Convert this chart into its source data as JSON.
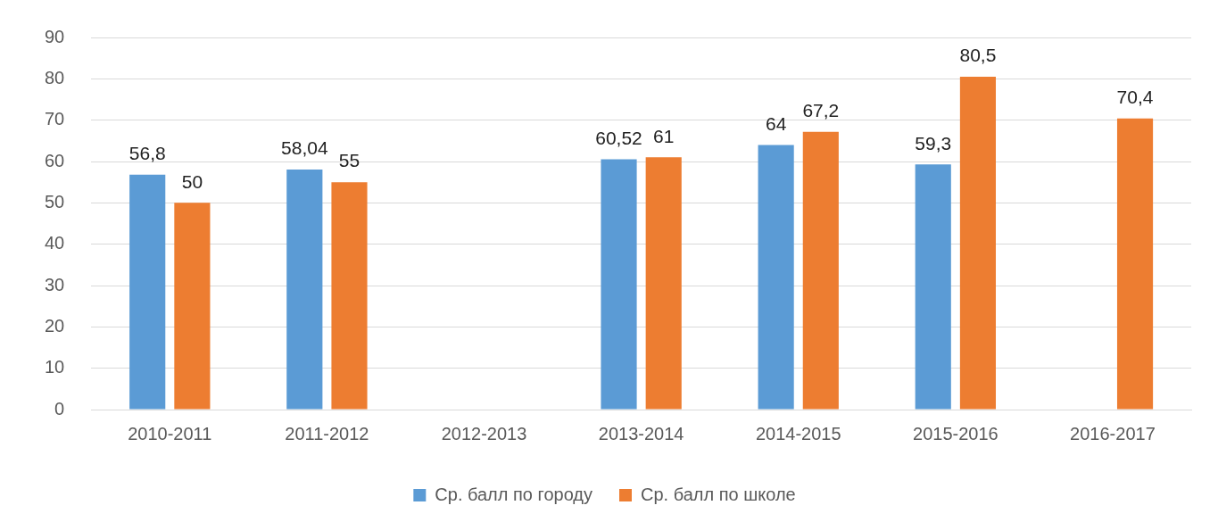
{
  "chart_data": {
    "type": "bar",
    "categories": [
      "2010-2011",
      "2011-2012",
      "2012-2013",
      "2013-2014",
      "2014-2015",
      "2015-2016",
      "2016-2017"
    ],
    "series": [
      {
        "name": "Ср. балл по городу",
        "color": "#5b9bd5",
        "values": [
          56.8,
          58.04,
          null,
          60.52,
          64,
          59.3,
          null
        ],
        "value_labels": [
          "56,8",
          "58,04",
          null,
          "60,52",
          "64",
          "59,3",
          null
        ]
      },
      {
        "name": "Ср. балл по школе",
        "color": "#ed7d31",
        "values": [
          50,
          55,
          null,
          61,
          67.2,
          80.5,
          70.4
        ],
        "value_labels": [
          "50",
          "55",
          null,
          "61",
          "67,2",
          "80,5",
          "70,4"
        ]
      }
    ],
    "ylim": [
      0,
      90
    ],
    "yticks": [
      0,
      10,
      20,
      30,
      40,
      50,
      60,
      70,
      80,
      90
    ],
    "grid": "y",
    "legend": "bottom"
  }
}
